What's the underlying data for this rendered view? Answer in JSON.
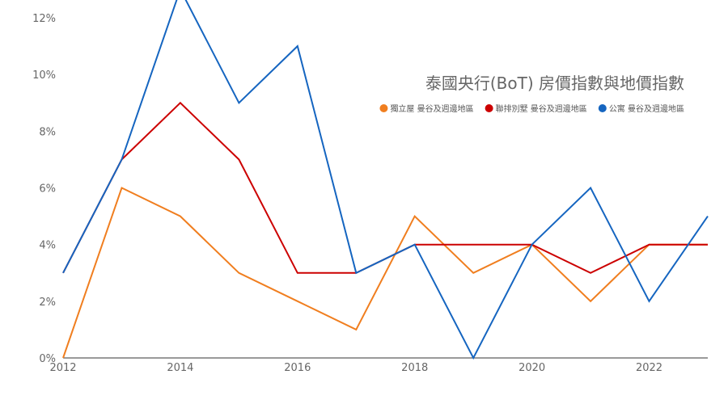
{
  "chart_data": {
    "type": "line",
    "title": "泰國央行(BoT) 房價指數與地價指數",
    "xlabel": "",
    "ylabel": "",
    "x": [
      2012,
      2013,
      2014,
      2015,
      2016,
      2017,
      2018,
      2019,
      2020,
      2021,
      2022,
      2023
    ],
    "xlim": [
      2012,
      2023
    ],
    "ylim": [
      0,
      12
    ],
    "x_ticks": [
      2012,
      2014,
      2016,
      2018,
      2020,
      2022
    ],
    "y_ticks": [
      0,
      2,
      4,
      6,
      8,
      10,
      12
    ],
    "y_tick_format": "%",
    "grid": false,
    "legend_position": "top-right",
    "series": [
      {
        "name": "獨立屋 曼谷及週邊地區",
        "color": "#f07e1f",
        "values": [
          0,
          6,
          5,
          3,
          2,
          1,
          5,
          3,
          4,
          2,
          4,
          4
        ]
      },
      {
        "name": "聯排別墅 曼谷及週邊地區",
        "color": "#cc0000",
        "values": [
          3,
          7,
          9,
          7,
          3,
          3,
          4,
          4,
          4,
          3,
          4,
          4
        ]
      },
      {
        "name": "公寓 曼谷及週邊地區",
        "color": "#1565c0",
        "values": [
          3,
          7,
          13,
          9,
          11,
          3,
          4,
          0,
          4,
          6,
          2,
          5
        ]
      }
    ]
  }
}
